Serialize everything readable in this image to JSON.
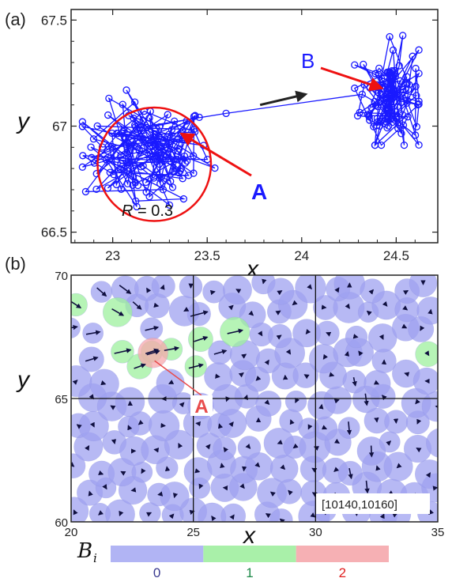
{
  "chart_data": [
    {
      "panel_label": "(a)",
      "type": "line",
      "xlabel": "x",
      "ylabel": "y",
      "xlim": [
        22.78,
        24.72
      ],
      "ylim": [
        66.45,
        67.55
      ],
      "x_ticks": [
        "23",
        "23.5",
        "24",
        "24.5"
      ],
      "x_tick_values": [
        23,
        23.5,
        24,
        24.5
      ],
      "y_ticks": [
        "66.5",
        "67",
        "67.5"
      ],
      "y_tick_values": [
        66.5,
        67,
        67.5
      ],
      "series": [
        {
          "marker": "open-circle",
          "color": "#1a1aff",
          "cluster_a": {
            "center": [
              23.18,
              66.87
            ],
            "spread_x": 0.17,
            "spread_y": 0.12,
            "x_min": 22.84,
            "x_max": 23.65,
            "y_min": 66.62,
            "y_max": 67.27
          },
          "cluster_b": {
            "center": [
              24.47,
              67.15
            ],
            "spread_x": 0.08,
            "spread_y": 0.12,
            "x_min": 24.28,
            "x_max": 24.62,
            "y_min": 66.91,
            "y_max": 67.51
          },
          "transition": [
            [
              23.6,
              67.06
            ],
            [
              24.32,
              67.15
            ]
          ]
        }
      ],
      "circle": {
        "center": [
          23.22,
          66.82
        ],
        "radius": 0.3,
        "color": "#ee1111"
      },
      "circle_label": {
        "prefix": "R",
        "text": " = 0.3"
      },
      "annotations": [
        {
          "text": "A",
          "color": "#1a1aff",
          "arrow_color": "#ee1111",
          "points_to": [
            23.35,
            66.97
          ]
        },
        {
          "text": "B",
          "color": "#1a1aff",
          "arrow_color": "#ee1111",
          "points_to": [
            24.42,
            67.15
          ]
        }
      ],
      "direction_arrow": {
        "from": [
          23.78,
          67.1
        ],
        "to": [
          24.02,
          67.15
        ],
        "color": "#222222"
      }
    },
    {
      "panel_label": "(b)",
      "type": "scatter",
      "xlabel": "x",
      "ylabel": "y",
      "xlim": [
        20,
        35
      ],
      "ylim": [
        60,
        70
      ],
      "x_ticks": [
        "20",
        "25",
        "30",
        "35"
      ],
      "x_tick_values": [
        20,
        25,
        30,
        35
      ],
      "y_ticks": [
        "60",
        "65",
        "70"
      ],
      "y_tick_values": [
        60,
        65,
        70
      ],
      "gridlines_x": [
        25,
        30
      ],
      "gridlines_y": [
        65
      ],
      "time_window": "[10140,10160]",
      "highlight": {
        "label": "A",
        "position": [
          23.35,
          66.85
        ],
        "color": "#e84b4b"
      },
      "categories_colors": {
        "0": "#9fa2f0",
        "1": "#9ef09e",
        "2": "#f7a8ac"
      },
      "green_particles": [
        [
          22.1,
          66.9
        ],
        [
          21.9,
          68.5
        ],
        [
          22.8,
          66.3
        ],
        [
          23.3,
          66.9
        ],
        [
          24.1,
          67.0
        ],
        [
          25.1,
          66.3
        ],
        [
          25.3,
          67.4
        ],
        [
          26.7,
          67.7
        ],
        [
          20.2,
          68.8
        ],
        [
          34.6,
          66.8
        ]
      ],
      "red_particles": [
        [
          23.35,
          66.85
        ]
      ]
    }
  ],
  "colorbar": {
    "label_symbol": "B",
    "label_sub": "i",
    "segments": [
      {
        "label": "0",
        "color": "#b1b4f4",
        "text_color": "#3a3a90"
      },
      {
        "label": "1",
        "color": "#a9f0a9",
        "text_color": "#1f8a4a"
      },
      {
        "label": "2",
        "color": "#f6b0b4",
        "text_color": "#e02020"
      }
    ]
  }
}
